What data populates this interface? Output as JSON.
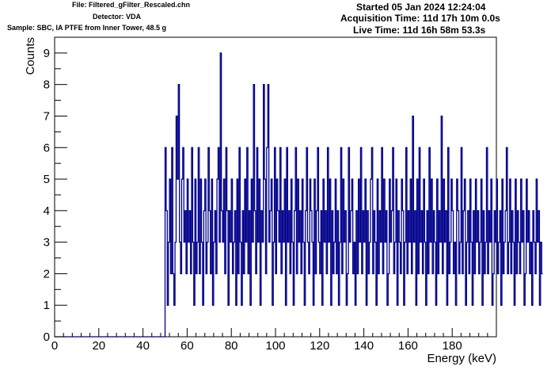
{
  "header": {
    "file_line": "File: Filtered_gFilter_Rescaled.chn",
    "detector_line": "Detector: VDA",
    "sample_line": "Sample: SBC, IA PTFE from Inner Tower, 48.5 g",
    "started_line": "Started 05 Jan 2024 12:24:04",
    "acquisition_line": "Acquisition Time: 11d 17h 10m 0.0s",
    "live_line": "Live Time: 11d 16h 58m 53.3s"
  },
  "colors": {
    "histogram": "#00008b",
    "axes": "#000000",
    "background": "#ffffff"
  },
  "chart_data": {
    "type": "bar",
    "style": "step histogram",
    "xlabel": "Energy (keV)",
    "ylabel": "Counts",
    "xlim": [
      0,
      200
    ],
    "ylim": [
      0,
      9.5
    ],
    "x_ticks": [
      "0",
      "20",
      "40",
      "60",
      "80",
      "100",
      "120",
      "140",
      "160",
      "180"
    ],
    "y_ticks": [
      "0",
      "1",
      "2",
      "3",
      "4",
      "5",
      "6",
      "7",
      "8",
      "9"
    ],
    "grid": false,
    "legend": "none",
    "series": [
      {
        "bin_start_keV": 0,
        "bin_width_keV": 0.5,
        "counts": [
          0,
          0,
          0,
          0,
          0,
          0,
          0,
          0,
          0,
          0,
          0,
          0,
          0,
          0,
          0,
          0,
          0,
          0,
          0,
          0,
          0,
          0,
          0,
          0,
          0,
          0,
          0,
          0,
          0,
          0,
          0,
          0,
          0,
          0,
          0,
          0,
          0,
          0,
          0,
          0,
          0,
          0,
          0,
          0,
          0,
          0,
          0,
          0,
          0,
          0,
          0,
          0,
          0,
          0,
          0,
          0,
          0,
          0,
          0,
          0,
          0,
          0,
          0,
          0,
          0,
          0,
          0,
          0,
          0,
          0,
          0,
          0,
          0,
          0,
          0,
          0,
          0,
          0,
          0,
          0,
          0,
          0,
          0,
          0,
          0,
          0,
          0,
          0,
          0,
          0,
          0,
          0,
          0,
          0,
          0,
          0,
          0,
          0,
          0,
          0,
          6,
          4,
          1,
          3,
          5,
          2,
          6,
          2,
          1,
          3,
          7,
          5,
          8,
          3,
          2,
          5,
          6,
          3,
          4,
          2,
          5,
          3,
          4,
          2,
          6,
          3,
          1,
          5,
          2,
          3,
          6,
          2,
          5,
          3,
          1,
          4,
          5,
          2,
          3,
          6,
          4,
          2,
          5,
          1,
          3,
          4,
          2,
          5,
          6,
          3,
          9,
          4,
          3,
          5,
          2,
          6,
          4,
          1,
          4,
          3,
          5,
          2,
          3,
          4,
          1,
          5,
          2,
          6,
          3,
          1,
          4,
          2,
          5,
          3,
          6,
          2,
          4,
          1,
          5,
          3,
          8,
          4,
          2,
          6,
          3,
          5,
          1,
          4,
          3,
          8,
          5,
          2,
          6,
          8,
          3,
          4,
          5,
          1,
          3,
          6,
          2,
          5,
          4,
          3,
          6,
          2,
          4,
          3,
          5,
          1,
          6,
          3,
          4,
          2,
          5,
          3,
          1,
          4,
          6,
          2,
          5,
          3,
          4,
          2,
          5,
          3,
          1,
          4,
          6,
          3,
          2,
          5,
          4,
          3,
          1,
          5,
          2,
          4,
          6,
          3,
          2,
          4,
          1,
          5,
          3,
          4,
          2,
          6,
          3,
          5,
          1,
          4,
          2,
          3,
          5,
          2,
          4,
          1,
          3,
          6,
          2,
          5,
          3,
          4,
          1,
          2,
          6,
          3,
          4,
          5,
          2,
          3,
          1,
          4,
          2,
          5,
          3,
          6,
          2,
          4,
          3,
          5,
          1,
          4,
          2,
          3,
          5,
          6,
          2,
          4,
          3,
          1,
          5,
          2,
          4,
          3,
          6,
          2,
          5,
          3,
          4,
          1,
          2,
          5,
          3,
          4,
          6,
          2,
          3,
          5,
          1,
          4,
          3,
          2,
          5,
          4,
          1,
          3,
          6,
          2,
          4,
          3,
          5,
          2,
          7,
          3,
          4,
          1,
          5,
          2,
          6,
          3,
          4,
          2,
          5,
          3,
          1,
          4,
          2,
          6,
          3,
          5,
          2,
          4,
          3,
          1,
          5,
          2,
          4,
          3,
          7,
          2,
          5,
          3,
          4,
          1,
          6,
          2,
          3,
          5,
          4,
          2,
          3,
          1,
          5,
          4,
          2,
          3,
          6,
          2,
          4,
          5,
          1,
          3,
          4,
          2,
          5,
          3,
          1,
          4,
          2,
          5,
          3,
          4,
          2,
          3,
          5,
          1,
          4,
          2,
          3,
          6,
          2,
          4,
          3,
          5,
          1,
          2,
          4,
          3,
          5,
          2,
          3,
          4,
          1,
          5,
          2,
          3,
          4,
          6,
          2,
          3,
          5,
          2,
          4,
          3,
          1,
          5,
          2,
          4,
          3,
          2,
          5,
          3,
          4,
          1,
          2,
          5,
          3,
          4,
          2,
          3,
          1,
          4,
          3,
          2,
          5,
          3,
          4,
          1,
          3,
          2
        ]
      }
    ]
  }
}
